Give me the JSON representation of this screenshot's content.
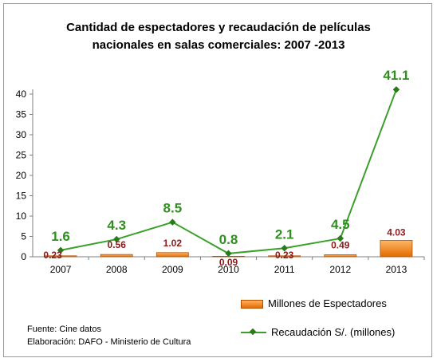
{
  "chart_data": {
    "type": "bar+line",
    "title": [
      "Cantidad de espectadores y recaudación de películas",
      "nacionales en salas comerciales: 2007 -2013"
    ],
    "categories": [
      "2007",
      "2008",
      "2009",
      "2010",
      "2011",
      "2012",
      "2013"
    ],
    "ylim": [
      0,
      40
    ],
    "yticks": [
      "0",
      "5",
      "10",
      "15",
      "20",
      "25",
      "30",
      "35",
      "40"
    ],
    "series": [
      {
        "name": "Millones de Espectadores",
        "kind": "bar",
        "values": [
          0.23,
          0.56,
          1.02,
          0.09,
          0.23,
          0.49,
          4.03
        ],
        "labels": [
          "0.23",
          "0.56",
          "1.02",
          "0.09",
          "0.23",
          "0.49",
          "4.03"
        ],
        "color": "#f08a24"
      },
      {
        "name": "Recaudación S/. (millones)",
        "kind": "line",
        "values": [
          1.6,
          4.3,
          8.5,
          0.8,
          2.1,
          4.5,
          41.1
        ],
        "labels": [
          "1.6",
          "4.3",
          "8.5",
          "0.8",
          "2.1",
          "4.5",
          "41.1"
        ],
        "color": "#3aa02a"
      }
    ],
    "grid": false,
    "legend": "bottom-right"
  },
  "source": {
    "line1": "Fuente: Cine datos",
    "line2": "Elaboración: DAFO - Ministerio de Cultura"
  }
}
